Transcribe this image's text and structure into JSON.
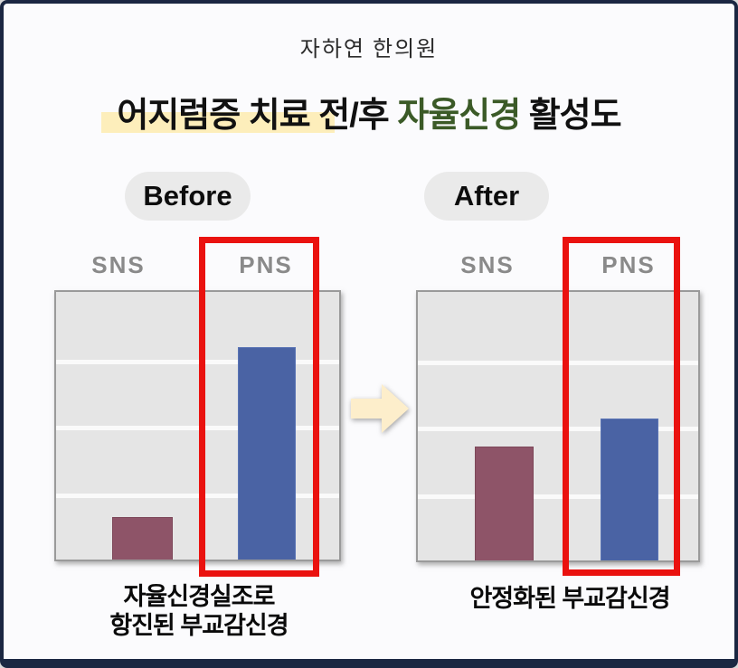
{
  "header": {
    "clinic_name": "자하연 한의원",
    "title_prefix": "어지럼증 치료 전/후 ",
    "title_accent": "자율신경",
    "title_suffix": " 활성도"
  },
  "panels": [
    {
      "badge": "Before",
      "axis_labels": [
        "SNS",
        "PNS"
      ],
      "caption": "자율신경실조로\n항진된 부교감신경"
    },
    {
      "badge": "After",
      "axis_labels": [
        "SNS",
        "PNS"
      ],
      "caption": "안정화된 부교감신경"
    }
  ],
  "chart_data": [
    {
      "type": "bar",
      "title": "Before",
      "categories": [
        "SNS",
        "PNS"
      ],
      "values": [
        0.63,
        3.17
      ],
      "ylim": [
        0,
        4
      ],
      "grid": true,
      "gridlines": 3,
      "bar_colors": [
        "#8e5468",
        "#4a63a4"
      ],
      "annotation": "PNS column outlined in red"
    },
    {
      "type": "bar",
      "title": "After",
      "categories": [
        "SNS",
        "PNS"
      ],
      "values": [
        1.7,
        2.11
      ],
      "ylim": [
        0,
        4
      ],
      "grid": true,
      "gridlines": 3,
      "bar_colors": [
        "#8e5468",
        "#4a64a4"
      ],
      "annotation": "PNS column outlined in red"
    }
  ],
  "colors": {
    "border_navy": "#1b2742",
    "background": "#fbfbfd",
    "title_accent_green": "#3b5a27",
    "title_highlight": "#fdeebb",
    "pill_gray": "#eaeaea",
    "axis_label_gray": "#8a8a8a",
    "chart_bg": "#e5e5e5",
    "bar_red": "#8e5468",
    "bar_blue": "#4a63a4",
    "annotation_red": "#ea120f",
    "arrow_cream": "#fdeecb"
  }
}
